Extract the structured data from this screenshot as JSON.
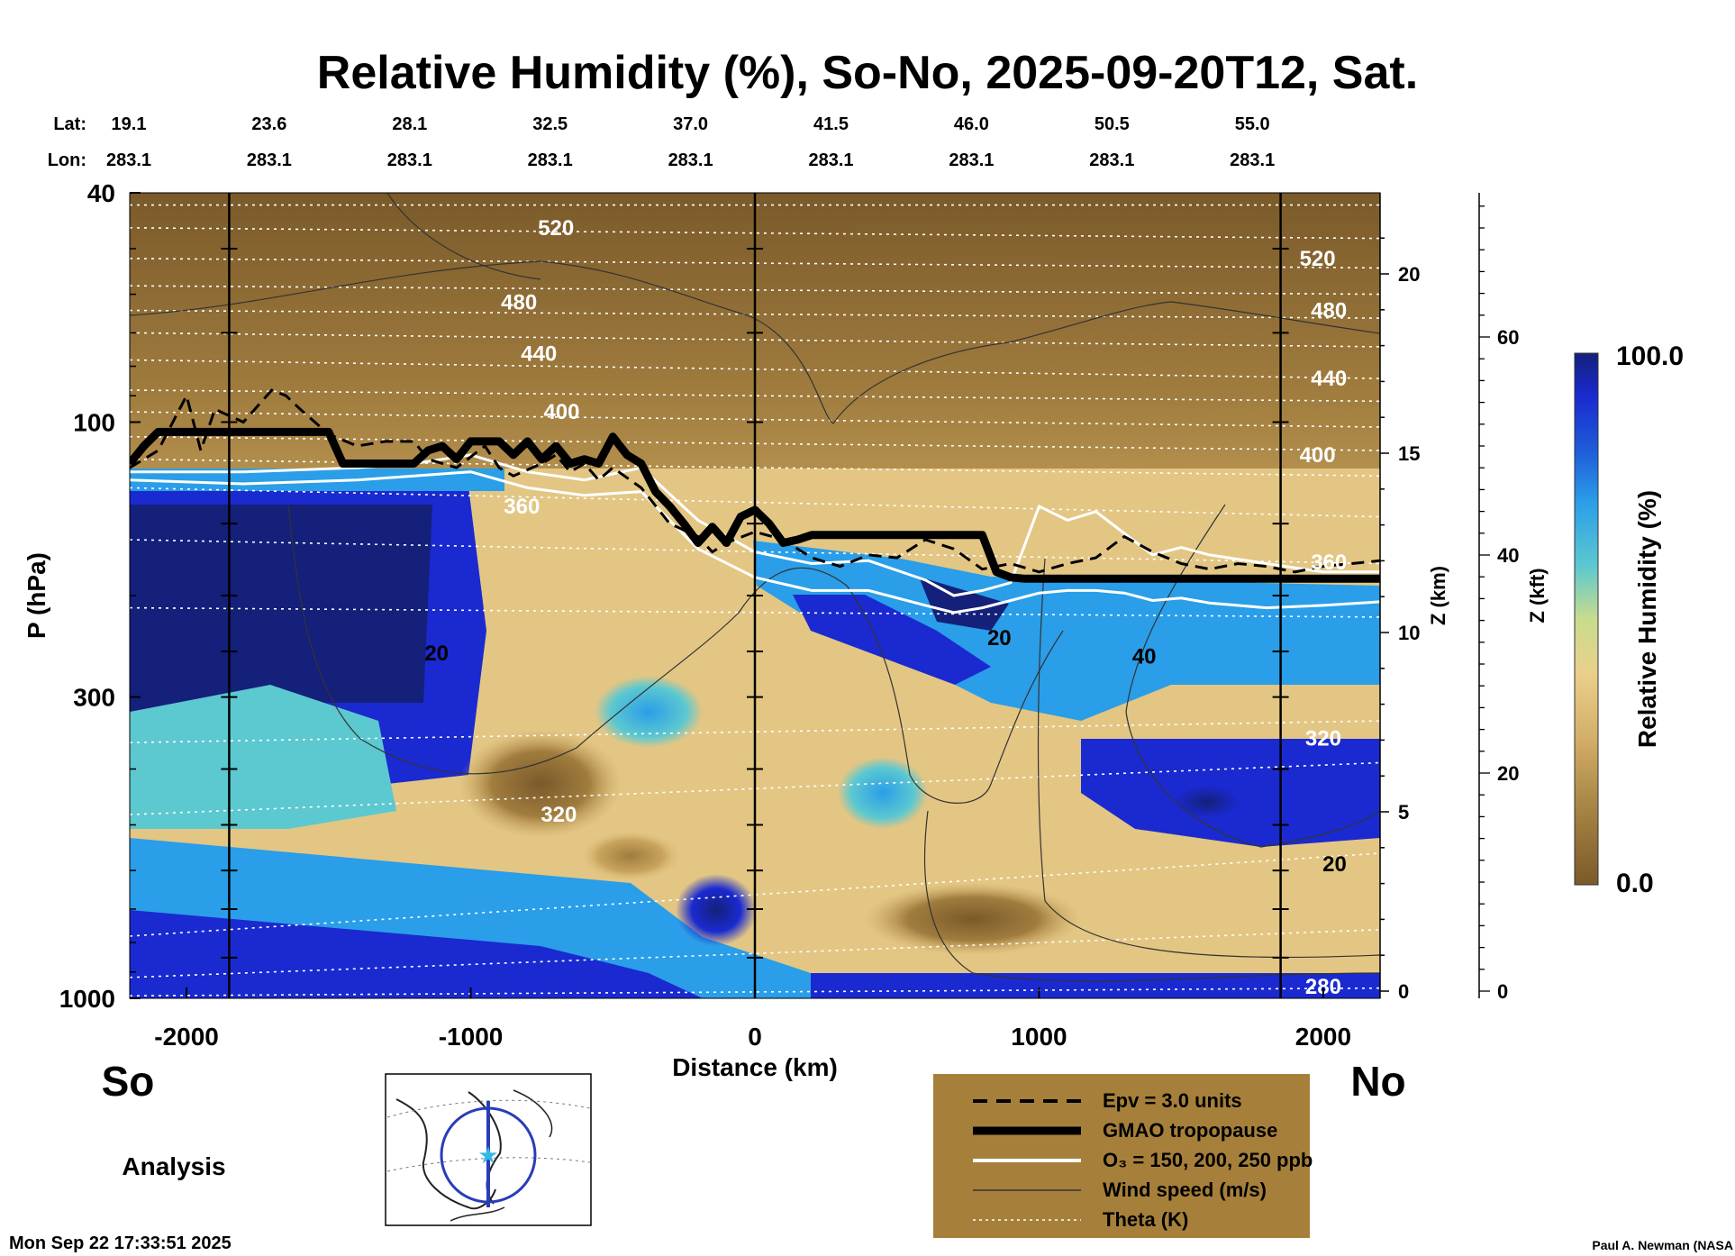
{
  "title": "Relative Humidity (%), So-No, 2025-09-20T12, Sat.",
  "header": {
    "lat_label": "Lat:",
    "lon_label": "Lon:",
    "lats": [
      "19.1",
      "23.6",
      "28.1",
      "32.5",
      "37.0",
      "41.5",
      "46.0",
      "50.5",
      "55.0"
    ],
    "lons": [
      "283.1",
      "283.1",
      "283.1",
      "283.1",
      "283.1",
      "283.1",
      "283.1",
      "283.1",
      "283.1"
    ]
  },
  "chart_data": {
    "type": "heatmap",
    "title": "Relative Humidity (%), So-No, 2025-09-20T12, Sat.",
    "xlabel": "Distance (km)",
    "ylabel": "P (hPa)",
    "right_label_km": "Z (km)",
    "right_label_kft": "Z (kft)",
    "xlim": [
      -2200,
      2200
    ],
    "ylim": [
      1000,
      40
    ],
    "y_scale": "log",
    "x_ticks": [
      -2000,
      -1000,
      0,
      1000,
      2000
    ],
    "x_tick_labels": [
      "-2000",
      "-1000",
      "0",
      "1000",
      "2000"
    ],
    "p_ticks": [
      40,
      100,
      300,
      1000
    ],
    "p_tick_labels": [
      "40",
      "100",
      "300",
      "1000"
    ],
    "z_km_ticks": [
      0,
      5,
      10,
      15,
      20
    ],
    "z_km_labels": [
      "0",
      "5",
      "10",
      "15",
      "20"
    ],
    "z_kft_ticks": [
      0,
      20,
      40,
      60
    ],
    "z_kft_labels": [
      "0",
      "20",
      "40",
      "60"
    ],
    "vertical_markers_km": [
      -1850,
      0,
      1850
    ],
    "colorbar": {
      "label": "Relative Humidity (%)",
      "min": 0.0,
      "max": 100.0,
      "min_label": "0.0",
      "max_label": "100.0",
      "colors": [
        "#7a5a2a",
        "#a07c3e",
        "#c9a45e",
        "#e8cc86",
        "#c8dc8c",
        "#5cc8d0",
        "#2a9ee8",
        "#1e5ad8",
        "#1a2ad0",
        "#14207a"
      ]
    },
    "theta_labels": [
      {
        "text": "520",
        "x": -700,
        "p": 46
      },
      {
        "text": "480",
        "x": -830,
        "p": 62
      },
      {
        "text": "440",
        "x": -760,
        "p": 76
      },
      {
        "text": "400",
        "x": -680,
        "p": 96
      },
      {
        "text": "360",
        "x": -820,
        "p": 140
      },
      {
        "text": "320",
        "x": -690,
        "p": 480
      },
      {
        "text": "520",
        "x": 1980,
        "p": 52
      },
      {
        "text": "480",
        "x": 2020,
        "p": 64
      },
      {
        "text": "440",
        "x": 2020,
        "p": 84
      },
      {
        "text": "400",
        "x": 1980,
        "p": 114
      },
      {
        "text": "360",
        "x": 2020,
        "p": 175
      },
      {
        "text": "320",
        "x": 2000,
        "p": 354
      },
      {
        "text": "280",
        "x": 2000,
        "p": 955
      }
    ],
    "wind_labels": [
      {
        "text": "20",
        "x": -1120,
        "p": 252
      },
      {
        "text": "20",
        "x": 860,
        "p": 237
      },
      {
        "text": "40",
        "x": 1370,
        "p": 255
      },
      {
        "text": "20",
        "x": 2040,
        "p": 585
      }
    ],
    "series": [
      {
        "name": "GMAO tropopause",
        "x": [
          -2200,
          -2150,
          -2100,
          -1600,
          -1500,
          -1450,
          -1400,
          -1200,
          -1150,
          -1100,
          -1050,
          -1000,
          -900,
          -850,
          -800,
          -750,
          -700,
          -650,
          -600,
          -550,
          -500,
          -450,
          -400,
          -350,
          -300,
          -250,
          -200,
          -150,
          -100,
          -50,
          0,
          50,
          100,
          150,
          200,
          800,
          850,
          900,
          950,
          2200
        ],
        "p": [
          118,
          110,
          104,
          104,
          104,
          118,
          118,
          118,
          112,
          110,
          116,
          108,
          108,
          114,
          108,
          116,
          110,
          118,
          116,
          118,
          106,
          114,
          118,
          132,
          140,
          150,
          162,
          152,
          162,
          146,
          142,
          150,
          162,
          160,
          157,
          157,
          182,
          186,
          187,
          187
        ]
      },
      {
        "name": "Epv = 3.0 units",
        "x": [
          -2200,
          -2100,
          -2000,
          -1950,
          -1900,
          -1800,
          -1700,
          -1650,
          -1600,
          -1500,
          -1400,
          -1300,
          -1200,
          -1150,
          -1050,
          -950,
          -900,
          -850,
          -750,
          -700,
          -650,
          -600,
          -550,
          -500,
          -400,
          -300,
          -200,
          -150,
          -100,
          0,
          100,
          200,
          300,
          400,
          500,
          600,
          700,
          800,
          900,
          1000,
          1100,
          1200,
          1300,
          1400,
          1500,
          1600,
          1700,
          1800,
          1900,
          2000,
          2100,
          2200
        ],
        "p": [
          120,
          112,
          90,
          112,
          95,
          100,
          88,
          90,
          95,
          105,
          110,
          108,
          108,
          116,
          120,
          110,
          120,
          124,
          118,
          114,
          122,
          118,
          126,
          120,
          130,
          150,
          158,
          168,
          162,
          155,
          160,
          172,
          178,
          170,
          172,
          160,
          166,
          180,
          176,
          182,
          176,
          172,
          158,
          168,
          176,
          180,
          176,
          178,
          182,
          178,
          176,
          174
        ]
      },
      {
        "name": "O3 = 150 ppb",
        "x": [
          -2200,
          -1800,
          -1400,
          -1200,
          -1000,
          -800,
          -600,
          -400,
          -200,
          0,
          200,
          400,
          600,
          700,
          800,
          900,
          1000,
          1100,
          1200,
          1300,
          1400,
          1500,
          1600,
          1800,
          2000,
          2200
        ],
        "p": [
          122,
          122,
          120,
          118,
          114,
          122,
          126,
          120,
          148,
          168,
          176,
          174,
          188,
          200,
          196,
          190,
          140,
          148,
          143,
          156,
          170,
          165,
          170,
          176,
          182,
          182
        ]
      },
      {
        "name": "O3 = 250 ppb",
        "x": [
          -2200,
          -1800,
          -1400,
          -1200,
          -1000,
          -800,
          -600,
          -400,
          -200,
          0,
          200,
          400,
          600,
          700,
          800,
          900,
          1000,
          1100,
          1200,
          1300,
          1400,
          1500,
          1600,
          1800,
          2000,
          2200
        ],
        "p": [
          126,
          128,
          126,
          124,
          122,
          130,
          134,
          132,
          166,
          186,
          196,
          196,
          208,
          214,
          210,
          204,
          198,
          196,
          196,
          198,
          204,
          202,
          206,
          210,
          208,
          205
        ]
      }
    ]
  },
  "axes": {
    "p_label": "P (hPa)",
    "distance_label": "Distance (km)",
    "z_km_label": "Z (km)",
    "z_kft_label": "Z (kft)"
  },
  "ends": {
    "left": "So",
    "right": "No"
  },
  "analysis_label": "Analysis",
  "legend": {
    "epv": "Epv = 3.0 units",
    "trop": "GMAO tropopause",
    "ozone": "O₃ = 150, 200, 250 ppb",
    "wind": "Wind speed (m/s)",
    "theta": "Theta (K)"
  },
  "colors": {
    "legend_bg": "#a6803a",
    "theta_line": "#ffffff",
    "trop_line": "#000000"
  },
  "footer": {
    "timestamp": "Mon Sep 22 17:33:51 2025",
    "credit": "Paul A. Newman (NASA"
  }
}
